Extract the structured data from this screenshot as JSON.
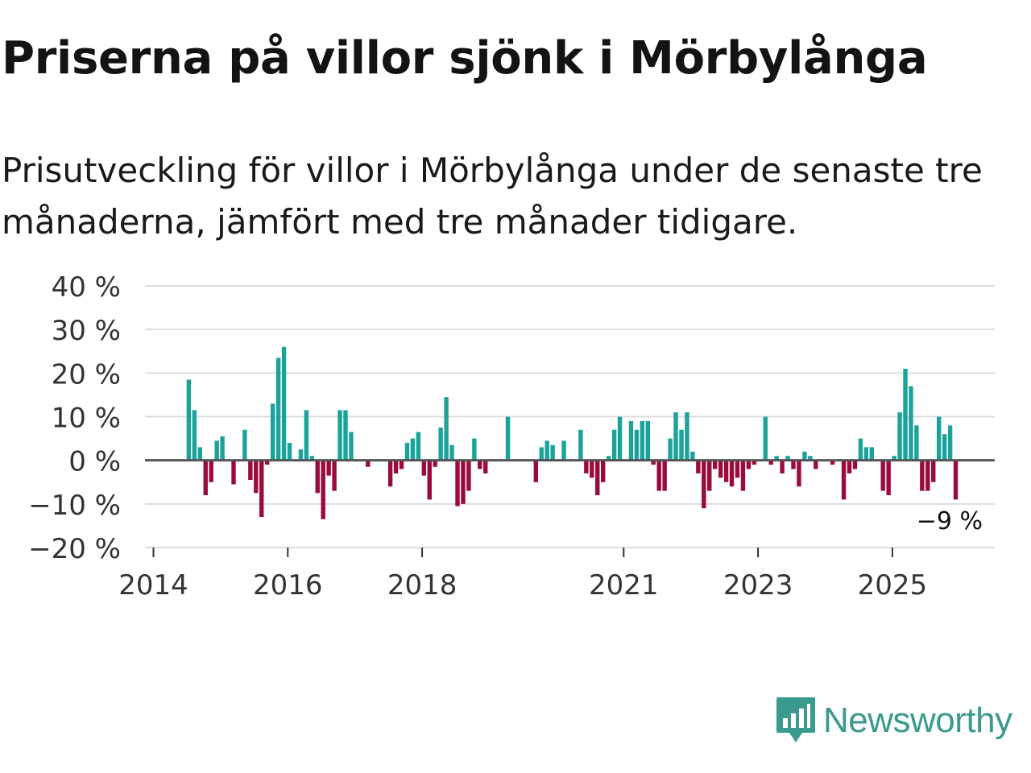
{
  "header": {
    "title": "Priserna på villor sjönk i Mörbylånga",
    "subtitle": "Prisutveckling för villor i Mörbylånga under de senaste tre månaderna, jämfört med tre månader tidigare."
  },
  "brand": {
    "name": "Newsworthy"
  },
  "colors": {
    "positive": "#1aa39a",
    "negative": "#9a0a3c",
    "zero_line": "#555555",
    "grid": "#dddddd"
  },
  "chart_data": {
    "type": "bar",
    "title": "Priserna på villor sjönk i Mörbylånga",
    "ylabel": "",
    "xlabel": "",
    "ylim": [
      -20,
      40
    ],
    "y_ticks": [
      40,
      30,
      20,
      10,
      0,
      -10,
      -20
    ],
    "y_tick_labels": [
      "40 %",
      "30 %",
      "20 %",
      "10 %",
      "0 %",
      "−10 %",
      "−20 %"
    ],
    "x_ticks": [
      {
        "label": "2014",
        "month_index": 0
      },
      {
        "label": "2016",
        "month_index": 24
      },
      {
        "label": "2018",
        "month_index": 48
      },
      {
        "label": "2021",
        "month_index": 84
      },
      {
        "label": "2023",
        "month_index": 108
      },
      {
        "label": "2025",
        "month_index": 132
      }
    ],
    "x_unit": "months since Jan 2014",
    "series": [
      {
        "name": "Prisutveckling",
        "points": [
          {
            "m": 6,
            "v": 18.5
          },
          {
            "m": 7,
            "v": 11.5
          },
          {
            "m": 8,
            "v": 3
          },
          {
            "m": 9,
            "v": -8
          },
          {
            "m": 10,
            "v": -5
          },
          {
            "m": 11,
            "v": 4.5
          },
          {
            "m": 12,
            "v": 5.5
          },
          {
            "m": 14,
            "v": -5.5
          },
          {
            "m": 16,
            "v": 7
          },
          {
            "m": 17,
            "v": -4.5
          },
          {
            "m": 18,
            "v": -7.5
          },
          {
            "m": 19,
            "v": -13
          },
          {
            "m": 20,
            "v": -1
          },
          {
            "m": 21,
            "v": 13
          },
          {
            "m": 22,
            "v": 23.5
          },
          {
            "m": 23,
            "v": 26
          },
          {
            "m": 24,
            "v": 4
          },
          {
            "m": 26,
            "v": 2.5
          },
          {
            "m": 27,
            "v": 11.5
          },
          {
            "m": 28,
            "v": 1
          },
          {
            "m": 29,
            "v": -7.5
          },
          {
            "m": 30,
            "v": -13.5
          },
          {
            "m": 31,
            "v": -3.5
          },
          {
            "m": 32,
            "v": -7
          },
          {
            "m": 33,
            "v": 11.5
          },
          {
            "m": 34,
            "v": 11.5
          },
          {
            "m": 35,
            "v": 6.5
          },
          {
            "m": 38,
            "v": -1.5
          },
          {
            "m": 42,
            "v": -6
          },
          {
            "m": 43,
            "v": -3
          },
          {
            "m": 44,
            "v": -2
          },
          {
            "m": 45,
            "v": 4
          },
          {
            "m": 46,
            "v": 5
          },
          {
            "m": 47,
            "v": 6.5
          },
          {
            "m": 48,
            "v": -3.5
          },
          {
            "m": 49,
            "v": -9
          },
          {
            "m": 50,
            "v": -1.5
          },
          {
            "m": 51,
            "v": 7.5
          },
          {
            "m": 52,
            "v": 14.5
          },
          {
            "m": 53,
            "v": 3.5
          },
          {
            "m": 54,
            "v": -10.5
          },
          {
            "m": 55,
            "v": -10
          },
          {
            "m": 56,
            "v": -7
          },
          {
            "m": 57,
            "v": 5
          },
          {
            "m": 58,
            "v": -2
          },
          {
            "m": 59,
            "v": -3
          },
          {
            "m": 63,
            "v": 10
          },
          {
            "m": 68,
            "v": -5
          },
          {
            "m": 69,
            "v": 3
          },
          {
            "m": 70,
            "v": 4.5
          },
          {
            "m": 71,
            "v": 3.5
          },
          {
            "m": 73,
            "v": 4.5
          },
          {
            "m": 76,
            "v": 7
          },
          {
            "m": 77,
            "v": -3
          },
          {
            "m": 78,
            "v": -4
          },
          {
            "m": 79,
            "v": -8
          },
          {
            "m": 80,
            "v": -5
          },
          {
            "m": 81,
            "v": 1
          },
          {
            "m": 82,
            "v": 7
          },
          {
            "m": 83,
            "v": 10
          },
          {
            "m": 85,
            "v": 9
          },
          {
            "m": 86,
            "v": 7
          },
          {
            "m": 87,
            "v": 9
          },
          {
            "m": 88,
            "v": 9
          },
          {
            "m": 89,
            "v": -1
          },
          {
            "m": 90,
            "v": -7
          },
          {
            "m": 91,
            "v": -7
          },
          {
            "m": 92,
            "v": 5
          },
          {
            "m": 93,
            "v": 11
          },
          {
            "m": 94,
            "v": 7
          },
          {
            "m": 95,
            "v": 11
          },
          {
            "m": 96,
            "v": 2
          },
          {
            "m": 97,
            "v": -3
          },
          {
            "m": 98,
            "v": -11
          },
          {
            "m": 99,
            "v": -7
          },
          {
            "m": 100,
            "v": -2
          },
          {
            "m": 101,
            "v": -4
          },
          {
            "m": 102,
            "v": -5
          },
          {
            "m": 103,
            "v": -6
          },
          {
            "m": 104,
            "v": -4
          },
          {
            "m": 105,
            "v": -7
          },
          {
            "m": 106,
            "v": -2
          },
          {
            "m": 107,
            "v": -1
          },
          {
            "m": 109,
            "v": 10
          },
          {
            "m": 110,
            "v": -1
          },
          {
            "m": 111,
            "v": 1
          },
          {
            "m": 112,
            "v": -3
          },
          {
            "m": 113,
            "v": 1
          },
          {
            "m": 114,
            "v": -2
          },
          {
            "m": 115,
            "v": -6
          },
          {
            "m": 116,
            "v": 2
          },
          {
            "m": 117,
            "v": 1
          },
          {
            "m": 118,
            "v": -2
          },
          {
            "m": 121,
            "v": -1
          },
          {
            "m": 123,
            "v": -9
          },
          {
            "m": 124,
            "v": -3
          },
          {
            "m": 125,
            "v": -2
          },
          {
            "m": 126,
            "v": 5
          },
          {
            "m": 127,
            "v": 3
          },
          {
            "m": 128,
            "v": 3
          },
          {
            "m": 130,
            "v": -7
          },
          {
            "m": 131,
            "v": -8
          },
          {
            "m": 132,
            "v": 1
          },
          {
            "m": 133,
            "v": 11
          },
          {
            "m": 134,
            "v": 21
          },
          {
            "m": 135,
            "v": 17
          },
          {
            "m": 136,
            "v": 8
          },
          {
            "m": 137,
            "v": -7
          },
          {
            "m": 138,
            "v": -7
          },
          {
            "m": 139,
            "v": -5
          },
          {
            "m": 140,
            "v": 10
          },
          {
            "m": 141,
            "v": 6
          },
          {
            "m": 142,
            "v": 8
          },
          {
            "m": 143,
            "v": -9
          }
        ]
      }
    ],
    "annotation": {
      "label": "−9 %",
      "month_index": 143
    }
  }
}
